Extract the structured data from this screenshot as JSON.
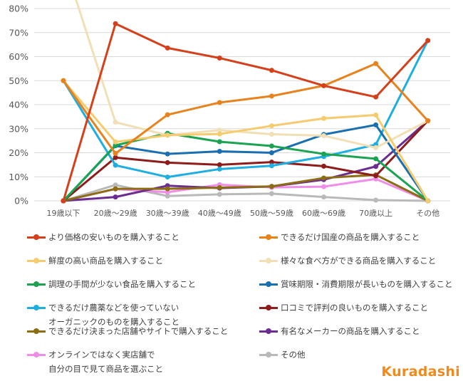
{
  "chart_data": {
    "type": "line",
    "title": "",
    "xlabel": "",
    "ylabel": "",
    "ylim": [
      0,
      80
    ],
    "yticks": [
      "0%",
      "10%",
      "20%",
      "30%",
      "40%",
      "50%",
      "60%",
      "70%",
      "80%"
    ],
    "grid": true,
    "legend_placement": "bottom",
    "categories": [
      "19歳以下",
      "20歳～29歳",
      "30歳～39歳",
      "40歳～49歳",
      "50歳～59歳",
      "60歳～69歳",
      "70歳以上",
      "その他"
    ],
    "series": [
      {
        "name": "より価格の安いものを購入すること",
        "color": "#d5401b",
        "values": [
          0,
          73.7,
          63.6,
          59.4,
          54.3,
          47.9,
          43.2,
          66.7
        ]
      },
      {
        "name": "できるだけ国産の商品を購入すること",
        "color": "#e8821c",
        "values": [
          50,
          19.7,
          35.8,
          40.9,
          43.6,
          47.9,
          57.1,
          33.3
        ]
      },
      {
        "name": "鮮度の高い商品を購入すること",
        "color": "#f5cb6e",
        "values": [
          50,
          24.5,
          27.3,
          27.8,
          31.2,
          34.3,
          35.7,
          0
        ]
      },
      {
        "name": "様々な食べ方ができる商品を購入すること",
        "color": "#f1dfb6",
        "values": [
          100,
          32.7,
          27.3,
          29.4,
          27.7,
          27.1,
          22.1,
          33.3
        ]
      },
      {
        "name": "調理の手間が少ない食品を購入すること",
        "color": "#1aa350",
        "values": [
          0,
          23.1,
          28.1,
          24.6,
          22.8,
          19.5,
          17.5,
          0
        ]
      },
      {
        "name": "賞味期限・消費期限が長いものを購入すること",
        "color": "#1a6fb0",
        "values": [
          0,
          22.9,
          19.5,
          20.6,
          20.0,
          27.6,
          31.6,
          0
        ]
      },
      {
        "name": "できるだけ農薬などを使っていない",
        "color": "#1eaee2",
        "values": [
          50,
          14.8,
          9.9,
          13.2,
          14.6,
          18.4,
          23.4,
          66.7
        ]
      },
      {
        "name": "口コミで評判の良いものを購入すること",
        "color": "#8e1c1a",
        "values": [
          0,
          18.0,
          15.9,
          15.0,
          16.1,
          14.4,
          10.4,
          33.3
        ]
      },
      {
        "name": "できるだけ決まった店舗やサイトで購入すること",
        "color": "#8c6d12",
        "values": [
          0,
          5.0,
          5.0,
          5.5,
          6.0,
          9.5,
          10.8,
          0
        ]
      },
      {
        "name": "有名なメーカーの商品を購入すること",
        "color": "#6b2d92",
        "values": [
          0,
          1.6,
          6.3,
          5.3,
          6.0,
          8.8,
          14.3,
          33.3
        ]
      },
      {
        "name": "オンラインではなく実店舗で",
        "name_line2": "自分の目で見て商品を選ぶこと",
        "color": "#f08de8",
        "values": [
          0,
          4.9,
          3.6,
          6.7,
          5.6,
          5.9,
          9.1,
          0
        ]
      },
      {
        "name": "その他",
        "color": "#b9b9b9",
        "values": [
          0,
          6.6,
          2.0,
          2.7,
          3.0,
          1.6,
          0.3,
          0
        ]
      }
    ],
    "extra_legend_text": "オーガニックのものを購入すること"
  },
  "logo": "Kuradashi"
}
